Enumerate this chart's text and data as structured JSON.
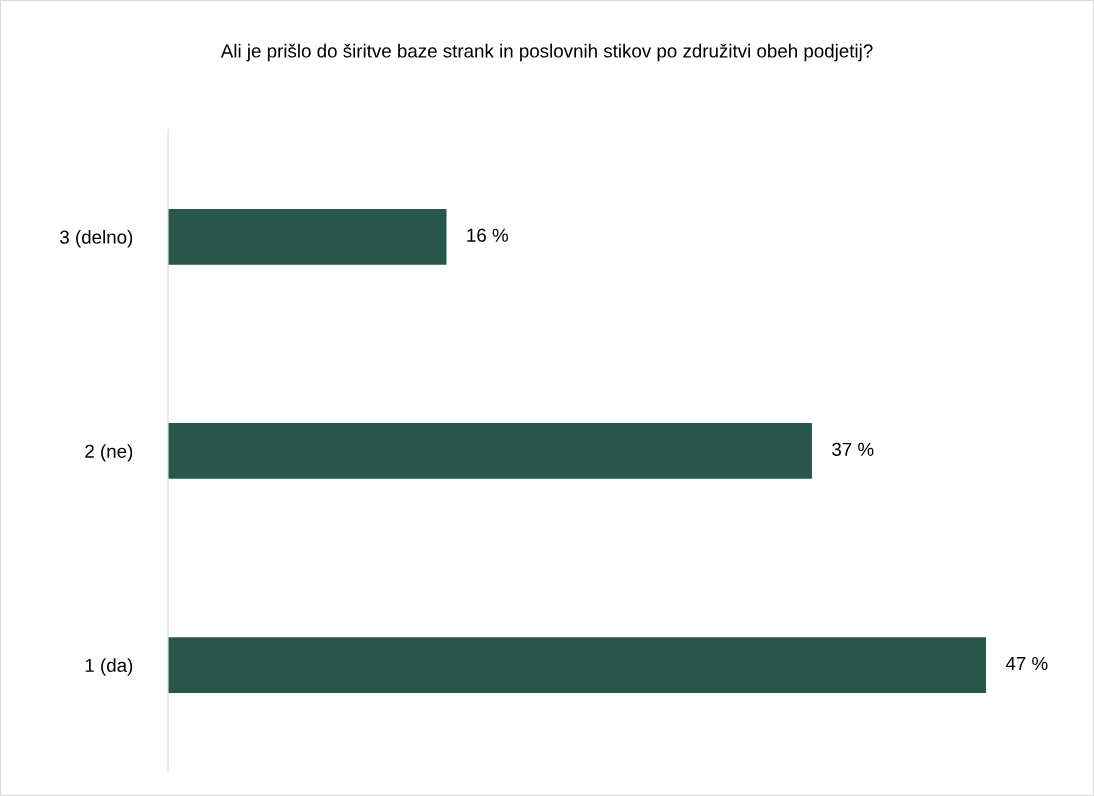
{
  "chart_data": {
    "type": "bar",
    "orientation": "horizontal",
    "title": "Ali je prišlo do širitve baze strank in poslovnih stikov po združitvi obeh podjetij?",
    "categories": [
      "3 (delno)",
      "2 (ne)",
      "1 (da)"
    ],
    "values": [
      16,
      37,
      47
    ],
    "value_labels": [
      "16 %",
      "37 %",
      "47 %"
    ],
    "color": "#27564b",
    "grid": false
  }
}
